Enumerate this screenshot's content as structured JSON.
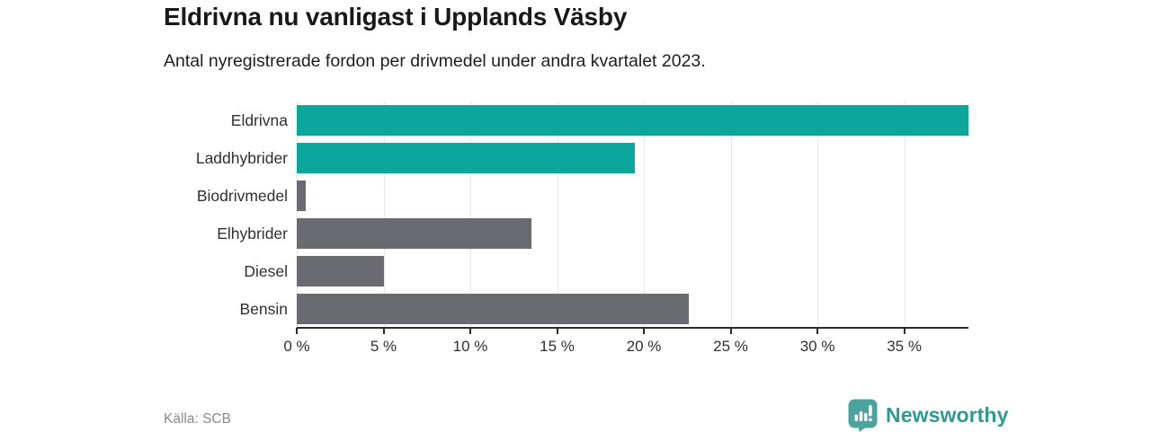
{
  "header": {
    "title": "Eldrivna nu vanligast i Upplands Väsby",
    "subtitle": "Antal nyregistrerade fordon per drivmedel under andra kvartalet 2023."
  },
  "footer": {
    "source": "Källa: SCB",
    "brand": "Newsworthy"
  },
  "colors": {
    "accent_teal": "#0ca69c",
    "muted_gray": "#6a6a71",
    "brand_teal": "#2e9a92",
    "axis": "#2b2b2b",
    "grid": "#e7e7e7"
  },
  "chart_data": {
    "type": "bar",
    "orientation": "horizontal",
    "title": "Eldrivna nu vanligast i Upplands Väsby",
    "subtitle": "Antal nyregistrerade fordon per drivmedel under andra kvartalet 2023.",
    "categories": [
      "Eldrivna",
      "Laddhybrider",
      "Biodrivmedel",
      "Elhybrider",
      "Diesel",
      "Bensin"
    ],
    "values": [
      38.7,
      19.5,
      0.5,
      13.5,
      5.0,
      22.6
    ],
    "unit": "%",
    "bar_colors": [
      "#0ca69c",
      "#0ca69c",
      "#6a6a71",
      "#6a6a71",
      "#6a6a71",
      "#6a6a71"
    ],
    "xlim": [
      0,
      38.7
    ],
    "xticks": [
      0,
      5,
      10,
      15,
      20,
      25,
      30,
      35
    ],
    "xtick_labels": [
      "0 %",
      "5 %",
      "10 %",
      "15 %",
      "20 %",
      "25 %",
      "30 %",
      "35 %"
    ],
    "grid": true,
    "legend": "none",
    "xlabel": "",
    "ylabel": ""
  }
}
